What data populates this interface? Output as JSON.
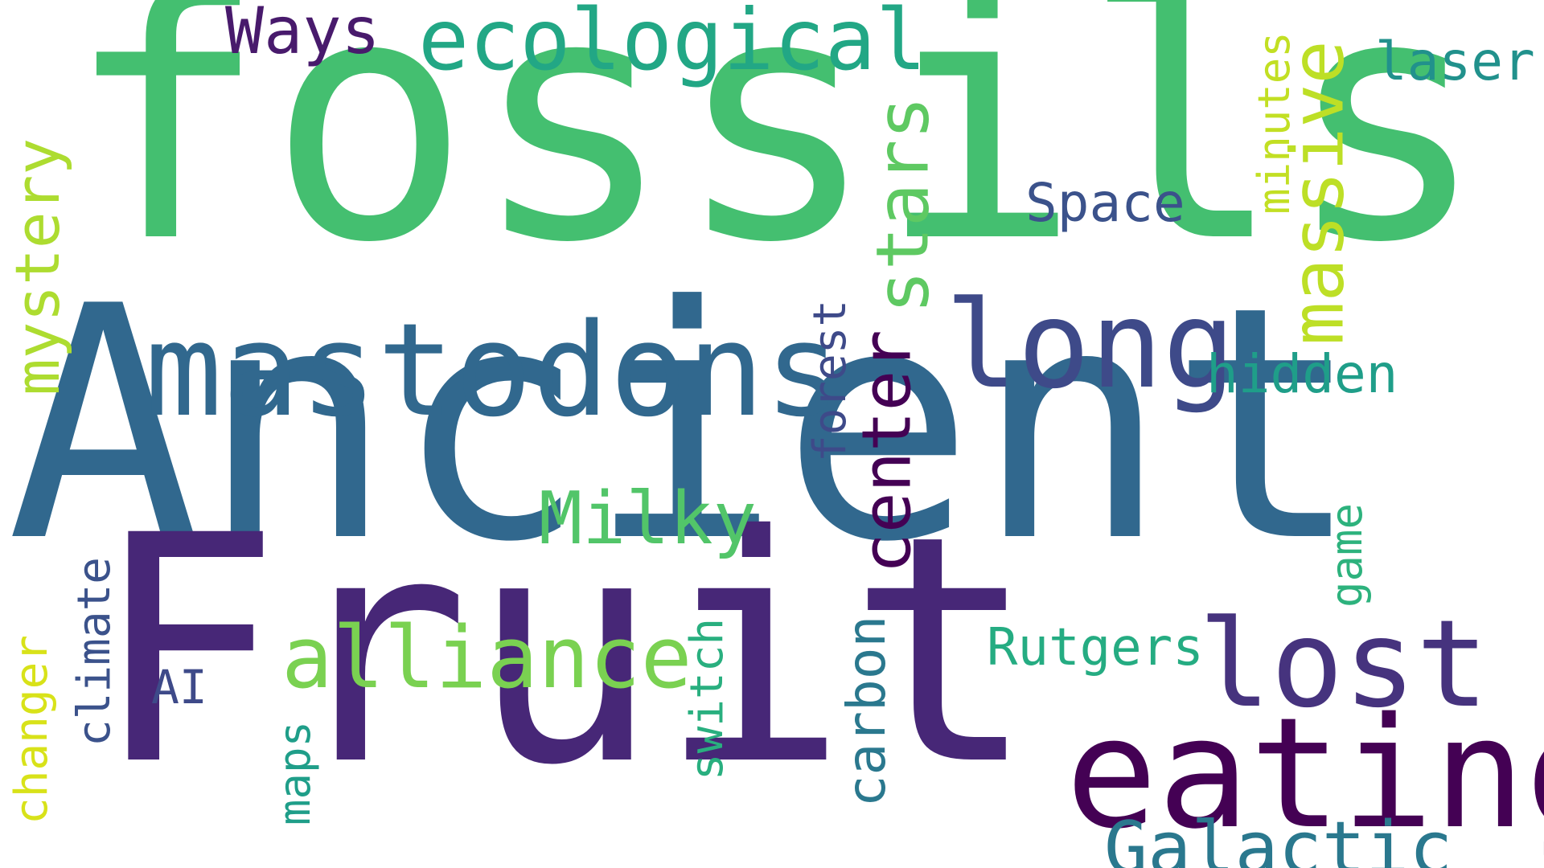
{
  "words": {
    "fossils": {
      "text": "fossils",
      "color": "#44bf70"
    },
    "ancient": {
      "text": "Ancient",
      "color": "#31688e"
    },
    "fruit": {
      "text": "Fruit",
      "color": "#472777"
    },
    "eating": {
      "text": "eating",
      "color": "#440154"
    },
    "mastodons": {
      "text": "mastodons",
      "color": "#31688e"
    },
    "long": {
      "text": "long",
      "color": "#3e4a89"
    },
    "lost": {
      "text": "lost",
      "color": "#46337e"
    },
    "alliance": {
      "text": "alliance",
      "color": "#7ad151"
    },
    "ecological": {
      "text": "ecological",
      "color": "#22a785"
    },
    "stars": {
      "text": "stars",
      "color": "#5ec962"
    },
    "massive": {
      "text": "massive",
      "color": "#bddf26"
    },
    "mystery": {
      "text": "mystery",
      "color": "#addc30"
    },
    "center": {
      "text": "center",
      "color": "#440154"
    },
    "milky": {
      "text": "Milky",
      "color": "#52c569"
    },
    "galactic": {
      "text": "Galactic",
      "color": "#2a788e"
    },
    "ways": {
      "text": "Ways",
      "color": "#481a6c"
    },
    "space": {
      "text": "Space",
      "color": "#3b528b"
    },
    "laser": {
      "text": "laser",
      "color": "#21918c"
    },
    "minutes": {
      "text": "minutes",
      "color": "#c2df23"
    },
    "hidden": {
      "text": "hidden",
      "color": "#1f9e89"
    },
    "forest": {
      "text": "forest",
      "color": "#3e4a89"
    },
    "rutgers": {
      "text": "Rutgers",
      "color": "#25ac82"
    },
    "game": {
      "text": "game",
      "color": "#2db27d"
    },
    "carbon": {
      "text": "carbon",
      "color": "#2a788e"
    },
    "switch": {
      "text": "switch",
      "color": "#29af7f"
    },
    "climate": {
      "text": "climate",
      "color": "#3b528b"
    },
    "changer": {
      "text": "changer",
      "color": "#d8e219"
    },
    "ai": {
      "text": "AI",
      "color": "#3e4a89"
    },
    "maps": {
      "text": "maps",
      "color": "#1f9e89"
    }
  }
}
